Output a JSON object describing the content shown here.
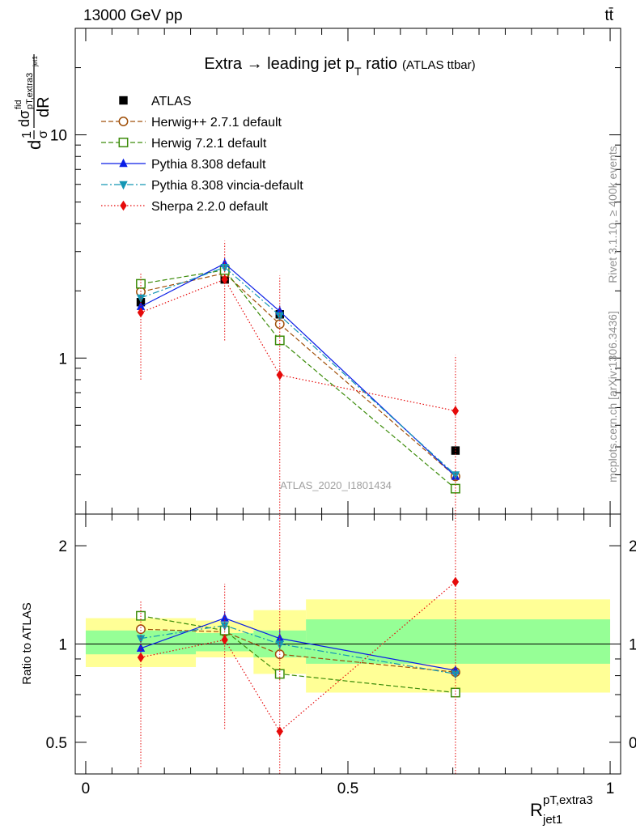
{
  "header": {
    "energy_label": "13000 GeV pp",
    "process_label": "tt̄",
    "plot_title": "Extra → leading jet p",
    "plot_title_sub": "T",
    "plot_title_tail": " ratio",
    "plot_title_note": "(ATLAS ttbar)",
    "analysis_id": "ATLAS_2020_I1801434",
    "side_note_top": "Rivet 3.1.10, ≥ 400k events",
    "side_note_bottom": "mcplots.cern.ch [arXiv:1306.3436]"
  },
  "colors": {
    "atlas": "#000000",
    "herwigpp": "#a0500a",
    "herwig7": "#3c8c0a",
    "pythia": "#0a1ee6",
    "vincia": "#1496b4",
    "sherpa": "#e60a0a",
    "band_outer": "#ffff96",
    "band_inner": "#96ff96"
  },
  "chart_data": [
    {
      "id": "main",
      "type": "scatter",
      "yscale": "log",
      "ylim": [
        0.2,
        30
      ],
      "xlim": [
        -0.02,
        1.02
      ],
      "ylabel_parts": [
        "d",
        "1",
        "σ",
        "d",
        "σ",
        "fid",
        "pT,extra3",
        "jet1",
        "dR"
      ],
      "yticks": [
        {
          "v": 1,
          "label": "1"
        },
        {
          "v": 10,
          "label": "10"
        }
      ],
      "legend_position": "top-left",
      "series": [
        {
          "name": "ATLAS",
          "key": "atlas",
          "marker": "square-filled",
          "line": "none",
          "x": [
            0.105,
            0.265,
            0.37,
            0.705
          ],
          "y": [
            1.78,
            2.25,
            1.57,
            0.385
          ],
          "err_low": [
            0.05,
            0.05,
            0.05,
            0.01
          ],
          "err_high": [
            0.05,
            0.05,
            0.05,
            0.01
          ]
        },
        {
          "name": "Herwig++ 2.7.1 default",
          "key": "herwigpp",
          "marker": "circle-open",
          "line": "dashed",
          "x": [
            0.105,
            0.265,
            0.37,
            0.705
          ],
          "y": [
            1.98,
            2.4,
            1.42,
            0.295
          ],
          "err_low": [
            0.06,
            0.06,
            0.05,
            0.01
          ],
          "err_high": [
            0.06,
            0.06,
            0.05,
            0.01
          ]
        },
        {
          "name": "Herwig 7.2.1 default",
          "key": "herwig7",
          "marker": "square-open",
          "line": "dashed",
          "x": [
            0.105,
            0.265,
            0.37,
            0.705
          ],
          "y": [
            2.15,
            2.48,
            1.2,
            0.26
          ],
          "err_low": [
            0.06,
            0.06,
            0.05,
            0.01
          ],
          "err_high": [
            0.06,
            0.06,
            0.05,
            0.01
          ]
        },
        {
          "name": "Pythia 8.308 default",
          "key": "pythia",
          "marker": "triangle-up-filled",
          "line": "solid",
          "x": [
            0.105,
            0.265,
            0.37,
            0.705
          ],
          "y": [
            1.7,
            2.65,
            1.62,
            0.295
          ],
          "err_low": [
            0.06,
            0.15,
            0.1,
            0.01
          ],
          "err_high": [
            0.06,
            0.15,
            0.1,
            0.01
          ]
        },
        {
          "name": "Pythia 8.308 vincia-default",
          "key": "vincia",
          "marker": "triangle-down-filled",
          "line": "dashdot",
          "x": [
            0.105,
            0.265,
            0.37,
            0.705
          ],
          "y": [
            1.86,
            2.55,
            1.55,
            0.3
          ],
          "err_low": [
            0.06,
            0.08,
            0.06,
            0.01
          ],
          "err_high": [
            0.06,
            0.08,
            0.06,
            0.01
          ]
        },
        {
          "name": "Sherpa 2.2.0 default",
          "key": "sherpa",
          "marker": "diamond-filled",
          "line": "dotted",
          "x": [
            0.105,
            0.265,
            0.37,
            0.705
          ],
          "y": [
            1.6,
            2.25,
            0.84,
            0.58
          ],
          "err_low": [
            0.8,
            1.05,
            0.84,
            0.58
          ],
          "err_high": [
            0.8,
            1.1,
            1.5,
            0.45
          ]
        }
      ]
    },
    {
      "id": "ratio",
      "type": "scatter",
      "yscale": "log",
      "ylim": [
        0.4,
        2.5
      ],
      "xlim": [
        -0.02,
        1.02
      ],
      "ylabel": "Ratio to ATLAS",
      "xlabel_main": "R",
      "xlabel_sup": "pT,extra3",
      "xlabel_sub": "jet1",
      "xticks": [
        {
          "v": 0,
          "label": "0"
        },
        {
          "v": 0.5,
          "label": "0.5"
        },
        {
          "v": 1,
          "label": "1"
        }
      ],
      "yticks": [
        {
          "v": 0.5,
          "label": "0.5"
        },
        {
          "v": 1,
          "label": "1"
        },
        {
          "v": 2,
          "label": "2"
        }
      ],
      "bands": [
        {
          "x0": 0.0,
          "x1": 0.21,
          "outer": [
            0.85,
            1.2
          ],
          "inner": [
            0.93,
            1.1
          ]
        },
        {
          "x0": 0.21,
          "x1": 0.32,
          "outer": [
            0.91,
            1.18
          ],
          "inner": [
            0.95,
            1.08
          ]
        },
        {
          "x0": 0.32,
          "x1": 0.42,
          "outer": [
            0.81,
            1.27
          ],
          "inner": [
            0.91,
            1.1
          ]
        },
        {
          "x0": 0.42,
          "x1": 1.0,
          "outer": [
            0.71,
            1.37
          ],
          "inner": [
            0.87,
            1.19
          ]
        }
      ],
      "series": [
        {
          "name": "Herwig++ 2.7.1 default",
          "key": "herwigpp",
          "marker": "circle-open",
          "line": "dashed",
          "x": [
            0.105,
            0.265,
            0.37,
            0.705
          ],
          "y": [
            1.11,
            1.09,
            0.93,
            0.82
          ],
          "err_low": [
            0.03,
            0.03,
            0.03,
            0.02
          ],
          "err_high": [
            0.03,
            0.03,
            0.03,
            0.02
          ]
        },
        {
          "name": "Herwig 7.2.1 default",
          "key": "herwig7",
          "marker": "square-open",
          "line": "dashed",
          "x": [
            0.105,
            0.265,
            0.37,
            0.705
          ],
          "y": [
            1.22,
            1.1,
            0.81,
            0.71
          ],
          "err_low": [
            0.03,
            0.03,
            0.03,
            0.02
          ],
          "err_high": [
            0.03,
            0.03,
            0.03,
            0.02
          ]
        },
        {
          "name": "Pythia 8.308 default",
          "key": "pythia",
          "marker": "triangle-up-filled",
          "line": "solid",
          "x": [
            0.105,
            0.265,
            0.37,
            0.705
          ],
          "y": [
            0.97,
            1.2,
            1.04,
            0.83
          ],
          "err_low": [
            0.03,
            0.06,
            0.07,
            0.02
          ],
          "err_high": [
            0.03,
            0.06,
            0.07,
            0.02
          ]
        },
        {
          "name": "Pythia 8.308 vincia-default",
          "key": "vincia",
          "marker": "triangle-down-filled",
          "line": "dashdot",
          "x": [
            0.105,
            0.265,
            0.37,
            0.705
          ],
          "y": [
            1.04,
            1.14,
            1.0,
            0.81
          ],
          "err_low": [
            0.03,
            0.04,
            0.04,
            0.02
          ],
          "err_high": [
            0.03,
            0.04,
            0.04,
            0.02
          ]
        },
        {
          "name": "Sherpa 2.2.0 default",
          "key": "sherpa",
          "marker": "diamond-filled",
          "line": "dotted",
          "x": [
            0.105,
            0.265,
            0.37,
            0.705
          ],
          "y": [
            0.91,
            1.03,
            0.54,
            1.55
          ],
          "err_low": [
            0.49,
            0.48,
            0.14,
            1.15
          ],
          "err_high": [
            0.45,
            0.5,
            1.96,
            1.0
          ]
        }
      ]
    }
  ]
}
